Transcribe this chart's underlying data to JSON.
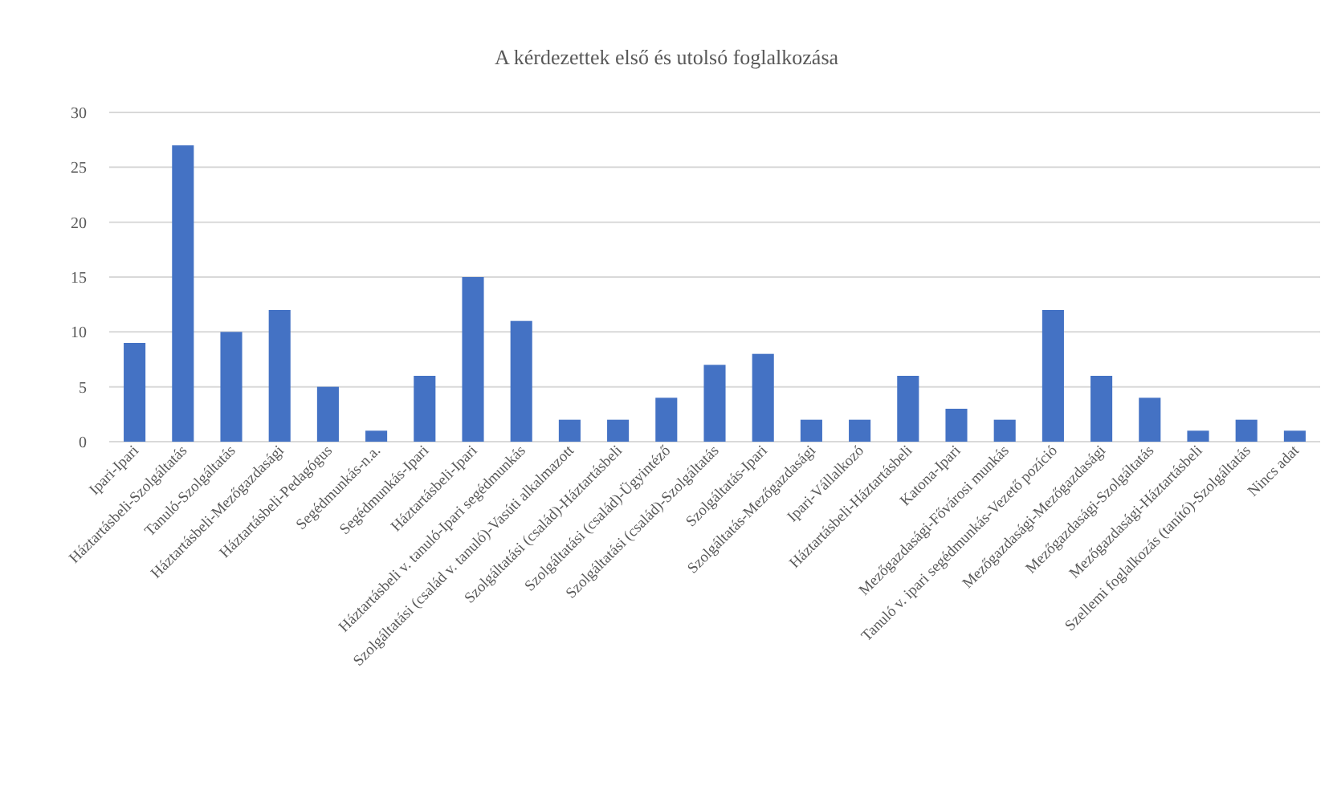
{
  "chart_data": {
    "type": "bar",
    "title": "A kérdezettek első és utolsó foglalkozása",
    "categories": [
      "Ipari-Ipari",
      "Háztartásbeli-Szolgáltatás",
      "Tanuló-Szolgáltatás",
      "Háztartásbeli-Mezőgazdasági",
      "Háztartásbeli-Pedagógus",
      "Segédmunkás-n.a.",
      "Segédmunkás-Ipari",
      "Háztartásbeli-Ipari",
      "Háztartásbeli v. tanuló-Ipari segédmunkás",
      "Szolgáltatási (család v. tanuló)-Vasúti alkalmazott",
      "Szolgáltatási (család)-Háztartásbeli",
      "Szolgáltatási (család)-Ügyintéző",
      "Szolgáltatási (család)-Szolgáltatás",
      "Szolgáltatás-Ipari",
      "Szolgáltatás-Mezőgazdasági",
      "Ipari-Vállalkozó",
      "Háztartásbeli-Háztartásbeli",
      "Katona-Ipari",
      "Mezőgazdasági-Fővárosi munkás",
      "Tanuló v. ipari segédmunkás-Vezető pozíció",
      "Mezőgazdasági-Mezőgazdasági",
      "Mezőgazdasági-Szolgáltatás",
      "Mezőgazdasági-Háztartásbeli",
      "Szellemi foglalkozás (tanító)-Szolgáltatás",
      "Nincs adat"
    ],
    "values": [
      9,
      27,
      10,
      12,
      5,
      1,
      6,
      15,
      11,
      2,
      2,
      4,
      7,
      8,
      2,
      2,
      6,
      3,
      2,
      12,
      6,
      4,
      1,
      2,
      1
    ],
    "color": "#4472c4",
    "ylim": [
      0,
      30
    ],
    "yticks": [
      0,
      5,
      10,
      15,
      20,
      25,
      30
    ],
    "grid": "y"
  }
}
